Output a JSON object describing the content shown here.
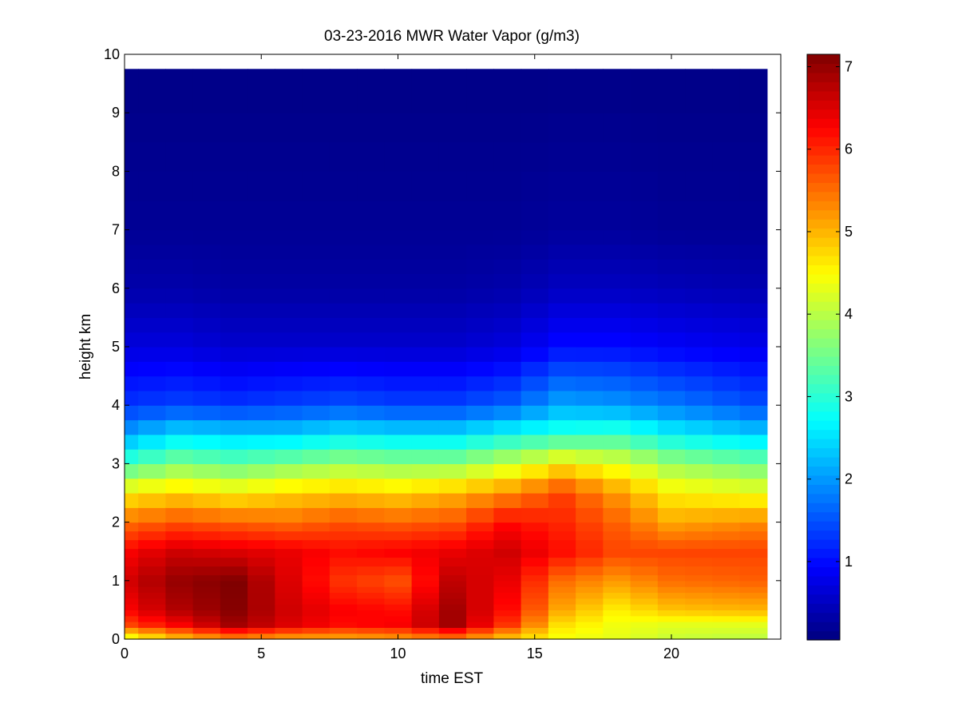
{
  "chart_data": {
    "type": "heatmap",
    "title": "03-23-2016 MWR Water Vapor (g/m3)",
    "xlabel": "time EST",
    "ylabel": "height km",
    "xlim": [
      0,
      24
    ],
    "ylim": [
      0,
      10
    ],
    "xticks": [
      0,
      5,
      10,
      15,
      20
    ],
    "yticks": [
      0,
      1,
      2,
      3,
      4,
      5,
      6,
      7,
      8,
      9,
      10
    ],
    "colorbar": {
      "range": [
        0.05,
        7.15
      ],
      "ticks": [
        1,
        2,
        3,
        4,
        5,
        6,
        7
      ],
      "colormap": "jet"
    },
    "time_bins": {
      "start": 0,
      "step": 1,
      "count": 24
    },
    "height_axis_profile_km": [
      0,
      0.1,
      0.2,
      0.3,
      0.4,
      0.5,
      0.6,
      0.7,
      0.8,
      0.9,
      1.0,
      1.1,
      1.25,
      1.4,
      1.55,
      1.7,
      1.85,
      2.0,
      2.25,
      2.5,
      2.75,
      3.0,
      3.25,
      3.5,
      3.75,
      4.0,
      4.25,
      4.5,
      4.75,
      5.0,
      5.25,
      5.5,
      5.75,
      6.0,
      6.25,
      6.5,
      6.75,
      7.0,
      7.5,
      8.0,
      8.5,
      9.0,
      9.75
    ],
    "profiles": [
      {
        "t": 0,
        "h": [
          0,
          0.25,
          0.5,
          1.0,
          1.5,
          2.0,
          2.5,
          3.0,
          3.5,
          4.0,
          5.0,
          6.0,
          7.0,
          9.75
        ],
        "v": [
          4.2,
          5.8,
          6.3,
          6.6,
          6.3,
          5.5,
          4.6,
          3.2,
          2.1,
          1.3,
          0.7,
          0.35,
          0.2,
          0.1
        ]
      },
      {
        "t": 2,
        "h": [
          0,
          0.25,
          0.5,
          1.0,
          1.5,
          2.0,
          2.5,
          3.0,
          3.5,
          4.0,
          5.0,
          6.0,
          7.0,
          9.75
        ],
        "v": [
          4.8,
          6.3,
          6.8,
          7.0,
          6.6,
          5.7,
          4.8,
          3.6,
          2.5,
          1.4,
          0.7,
          0.35,
          0.2,
          0.1
        ]
      },
      {
        "t": 4,
        "h": [
          0,
          0.25,
          0.5,
          1.0,
          1.5,
          2.0,
          2.5,
          3.0,
          3.5,
          4.0,
          5.0,
          6.0,
          7.0,
          9.75
        ],
        "v": [
          5.2,
          6.9,
          7.1,
          7.15,
          6.5,
          5.6,
          4.6,
          3.4,
          2.4,
          1.3,
          0.6,
          0.3,
          0.2,
          0.1
        ]
      },
      {
        "t": 6,
        "h": [
          0,
          0.25,
          0.5,
          1.0,
          1.5,
          2.0,
          2.5,
          3.0,
          3.5,
          4.0,
          5.0,
          6.0,
          7.0,
          9.75
        ],
        "v": [
          5.0,
          6.5,
          6.6,
          6.5,
          6.4,
          5.5,
          4.8,
          3.6,
          2.4,
          1.4,
          0.6,
          0.3,
          0.2,
          0.1
        ]
      },
      {
        "t": 8,
        "h": [
          0,
          0.25,
          0.5,
          1.0,
          1.5,
          2.0,
          2.5,
          3.0,
          3.5,
          4.0,
          5.0,
          6.0,
          7.0,
          9.75
        ],
        "v": [
          5.0,
          6.2,
          6.3,
          5.9,
          6.2,
          5.7,
          4.9,
          3.8,
          2.6,
          1.5,
          0.6,
          0.3,
          0.2,
          0.1
        ]
      },
      {
        "t": 10,
        "h": [
          0,
          0.25,
          0.5,
          1.0,
          1.5,
          2.0,
          2.5,
          3.0,
          3.5,
          4.0,
          5.0,
          6.0,
          7.0,
          9.75
        ],
        "v": [
          5.1,
          6.3,
          6.2,
          5.7,
          6.3,
          5.6,
          4.8,
          3.7,
          2.5,
          1.4,
          0.6,
          0.3,
          0.2,
          0.1
        ]
      },
      {
        "t": 12,
        "h": [
          0,
          0.25,
          0.5,
          1.0,
          1.5,
          2.0,
          2.5,
          3.0,
          3.5,
          4.0,
          5.0,
          6.0,
          7.0,
          9.75
        ],
        "v": [
          5.3,
          6.9,
          6.9,
          6.7,
          6.4,
          5.7,
          5.0,
          3.7,
          2.5,
          1.4,
          0.6,
          0.3,
          0.2,
          0.1
        ]
      },
      {
        "t": 14,
        "h": [
          0,
          0.25,
          0.5,
          1.0,
          1.5,
          2.0,
          2.5,
          3.0,
          3.5,
          4.0,
          5.0,
          6.0,
          7.0,
          9.75
        ],
        "v": [
          4.8,
          5.9,
          6.2,
          6.4,
          6.6,
          6.2,
          5.3,
          4.1,
          2.8,
          1.6,
          0.7,
          0.35,
          0.2,
          0.1
        ]
      },
      {
        "t": 16,
        "h": [
          0,
          0.25,
          0.5,
          1.0,
          1.5,
          2.0,
          2.5,
          3.0,
          3.5,
          4.0,
          5.0,
          6.0,
          7.0,
          9.75
        ],
        "v": [
          4.4,
          4.7,
          5.1,
          5.5,
          6.2,
          6.0,
          5.8,
          4.6,
          3.0,
          2.1,
          1.0,
          0.5,
          0.25,
          0.1
        ]
      },
      {
        "t": 18,
        "h": [
          0,
          0.25,
          0.5,
          1.0,
          1.5,
          2.0,
          2.5,
          3.0,
          3.5,
          4.0,
          5.0,
          6.0,
          7.0,
          9.75
        ],
        "v": [
          4.3,
          4.4,
          4.6,
          5.2,
          5.8,
          5.6,
          5.2,
          4.3,
          3.1,
          2.0,
          1.0,
          0.5,
          0.25,
          0.1
        ]
      },
      {
        "t": 20,
        "h": [
          0,
          0.25,
          0.5,
          1.0,
          1.5,
          2.0,
          2.5,
          3.0,
          3.5,
          4.0,
          5.0,
          6.0,
          7.0,
          9.75
        ],
        "v": [
          4.1,
          4.3,
          4.9,
          5.5,
          5.8,
          5.1,
          4.6,
          3.8,
          2.7,
          1.8,
          0.9,
          0.45,
          0.2,
          0.1
        ]
      },
      {
        "t": 23,
        "h": [
          0,
          0.25,
          0.5,
          1.0,
          1.5,
          2.0,
          2.5,
          3.0,
          3.5,
          4.0,
          5.0,
          6.0,
          7.0,
          9.75
        ],
        "v": [
          4.0,
          4.3,
          5.0,
          5.6,
          5.8,
          5.3,
          4.4,
          3.5,
          2.4,
          1.5,
          0.8,
          0.4,
          0.2,
          0.1
        ]
      }
    ]
  }
}
